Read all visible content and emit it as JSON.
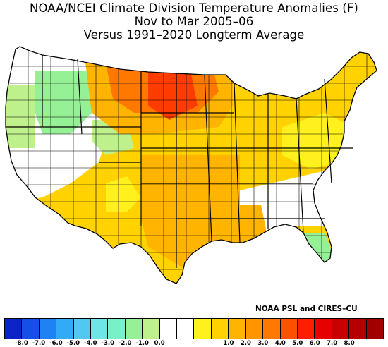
{
  "title": {
    "line1": "NOAA/NCEI Climate Division Temperature Anomalies (F)",
    "line2": "Nov to Mar 2005–06",
    "line3": "Versus 1991–2020 Longterm Average"
  },
  "credit": "NOAA PSL and CIRES–CU",
  "legend": {
    "colors": [
      "#0a24c8",
      "#1450e6",
      "#1e82f5",
      "#32aaf5",
      "#50c8f0",
      "#6ee6e6",
      "#78f0c8",
      "#96f096",
      "#bef08c",
      "#ffffff",
      "#ffffff",
      "#fff01e",
      "#ffd200",
      "#ffb400",
      "#ff9600",
      "#ff7800",
      "#ff5000",
      "#ff1e00",
      "#e60000",
      "#c80000",
      "#b40000",
      "#a00000"
    ],
    "ticks": [
      "-8.0",
      "-7.0",
      "-6.0",
      "-5.0",
      "-4.0",
      "-3.0",
      "-2.0",
      "-1.0",
      "0.0",
      "1.0",
      "2.0",
      "3.0",
      "4.0",
      "5.0",
      "6.0",
      "7.0",
      "8.0"
    ]
  },
  "map": {
    "anomaly_colors": {
      "strong_positive": "#ff3c00",
      "high_positive": "#ff7800",
      "moderate_positive": "#ffb400",
      "mild_positive": "#ffd200",
      "slight_positive": "#fff01e",
      "neutral": "#ffffff",
      "slight_negative": "#bef08c",
      "mild_negative": "#96f096"
    }
  }
}
